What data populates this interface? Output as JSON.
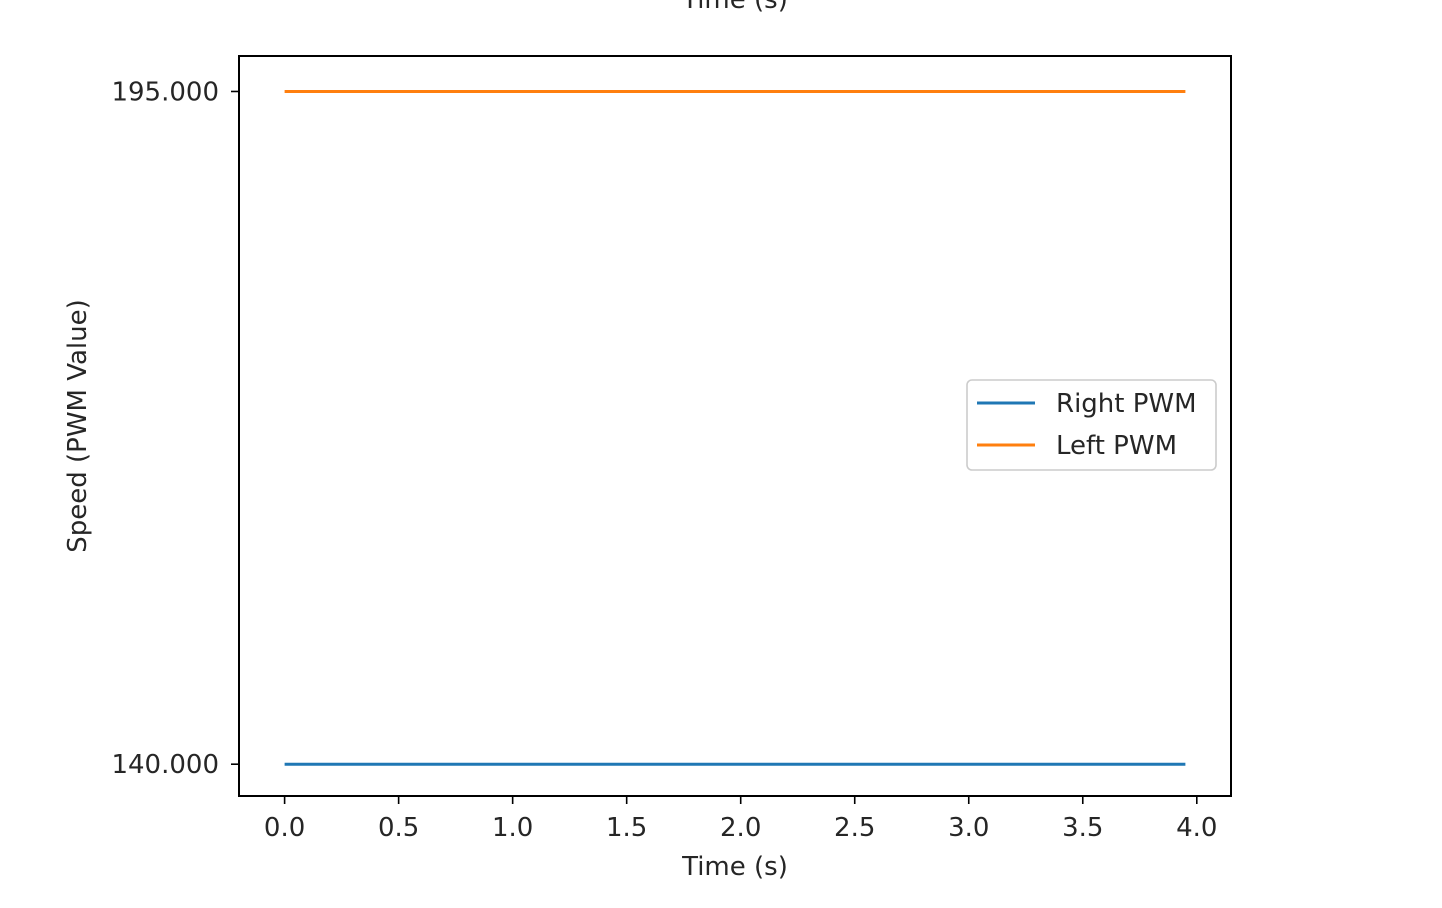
{
  "chart_data": {
    "type": "line",
    "title": "Time (s)",
    "xlabel": "Time (s)",
    "ylabel": "Speed (PWM Value)",
    "xlim": [
      -0.2,
      4.15
    ],
    "ylim": [
      137.4,
      197.9
    ],
    "xticks": [
      0.0,
      0.5,
      1.0,
      1.5,
      2.0,
      2.5,
      3.0,
      3.5,
      4.0
    ],
    "xtick_labels": [
      "0.0",
      "0.5",
      "1.0",
      "1.5",
      "2.0",
      "2.5",
      "3.0",
      "3.5",
      "4.0"
    ],
    "yticks": [
      140,
      195
    ],
    "ytick_labels": [
      "140.000",
      "195.000"
    ],
    "grid": false,
    "legend_position": "center-right",
    "series": [
      {
        "name": "Right PWM",
        "color": "#1f77b4",
        "x": [
          0.0,
          3.95
        ],
        "y": [
          140,
          140
        ]
      },
      {
        "name": "Left PWM",
        "color": "#ff7f0e",
        "x": [
          0.0,
          3.95
        ],
        "y": [
          195,
          195
        ]
      }
    ]
  }
}
